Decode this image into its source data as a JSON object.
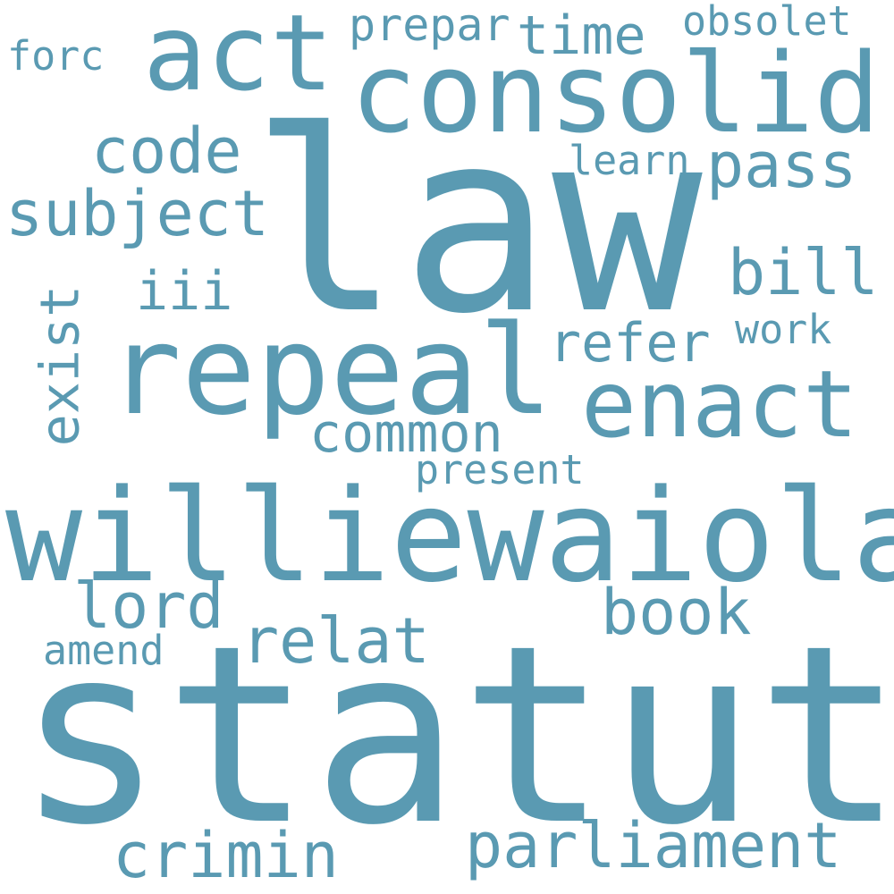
{
  "cloud": {
    "color": "#5a9ab2",
    "words": {
      "statut": "statut",
      "law": "law",
      "williewaiola": "williewaiola",
      "repeal": "repeal",
      "consolid": "consolid",
      "act": "act",
      "enact": "enact",
      "parliament": "parliament",
      "subject": "subject",
      "crimin": "crimin",
      "book": "book",
      "relat": "relat",
      "pass": "pass",
      "code": "code",
      "bill": "bill",
      "lord": "lord",
      "common": "common",
      "refer": "refer",
      "exist": "exist",
      "time": "time",
      "iii": "iii",
      "prepar": "prepar",
      "obsolet": "obsolet",
      "forc": "forc",
      "learn": "learn",
      "work": "work",
      "present": "present",
      "amend": "amend"
    }
  }
}
